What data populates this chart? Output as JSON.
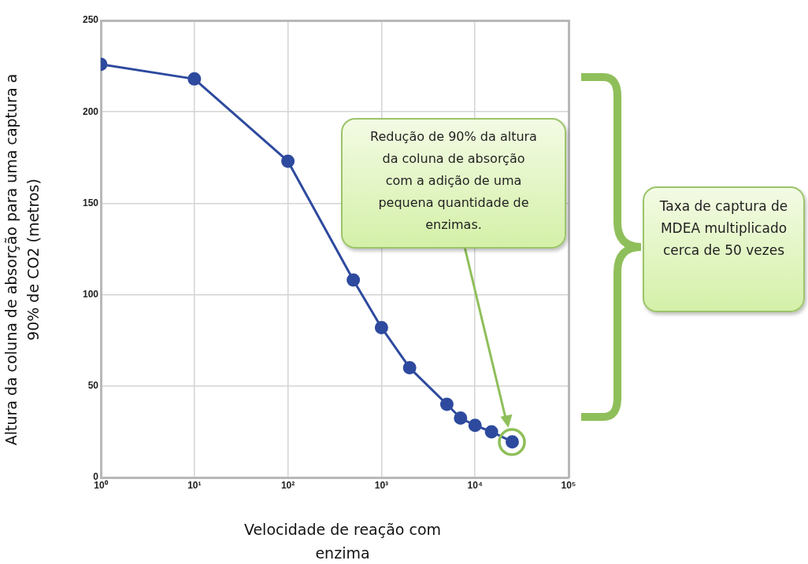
{
  "chart_data": {
    "type": "line",
    "xlabel": "Velocidade de reação com enzima",
    "ylabel": "Altura da coluna de absorção para uma captura a 90% de CO2 (metros)",
    "x": [
      1,
      10,
      100,
      500,
      1000,
      2000,
      5000,
      7000,
      10000,
      15000,
      25000
    ],
    "series": [
      {
        "color": "#2e4a9e",
        "values": [
          226,
          218,
          173,
          108,
          82,
          60,
          40,
          32.5,
          28.5,
          25,
          19.5
        ]
      }
    ],
    "log": "x",
    "xlim": [
      1,
      100000
    ],
    "xticks": [
      {
        "value": 1,
        "label": "10⁰"
      },
      {
        "value": 10,
        "label": "10¹"
      },
      {
        "value": 100,
        "label": "10²"
      },
      {
        "value": 1000,
        "label": "10³"
      },
      {
        "value": 10000,
        "label": "10⁴"
      },
      {
        "value": 100000,
        "label": "10⁵"
      }
    ],
    "ylim": [
      0,
      250
    ],
    "yticks": [
      0,
      50,
      100,
      150,
      200,
      250
    ],
    "grid": true,
    "marker": "circle",
    "line_style": "solid",
    "legend": false,
    "annotations": [
      "Redução de 90% da altura da coluna de absorção com a adição de uma pequena quantidade de enzimas.",
      "Taxa de captura de MDEA multiplicado cerca de 50 vezes"
    ]
  }
}
